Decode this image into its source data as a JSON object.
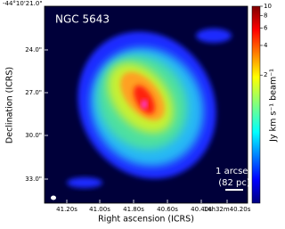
{
  "title": "NGC 5643",
  "x_axis": {
    "label": "Right ascension (ICRS)",
    "ticks": [
      "41.20s",
      "41.00s",
      "41.80s",
      "40.60s",
      "40.40s",
      "14h32m40.20s"
    ]
  },
  "y_axis": {
    "label": "Declination (ICRS)",
    "ticks": [
      "-44°10'21.0\"",
      "24.0\"",
      "27.0\"",
      "30.0\"",
      "33.0\""
    ]
  },
  "colorbar": {
    "label": "Jy km s⁻¹ beam⁻¹",
    "log": true,
    "lim": [
      0.1,
      10
    ],
    "ticks": [
      10,
      8,
      6,
      4,
      2
    ]
  },
  "scale_bar": {
    "label": "1 arcsec",
    "sublabel": "(82 pc)"
  }
}
